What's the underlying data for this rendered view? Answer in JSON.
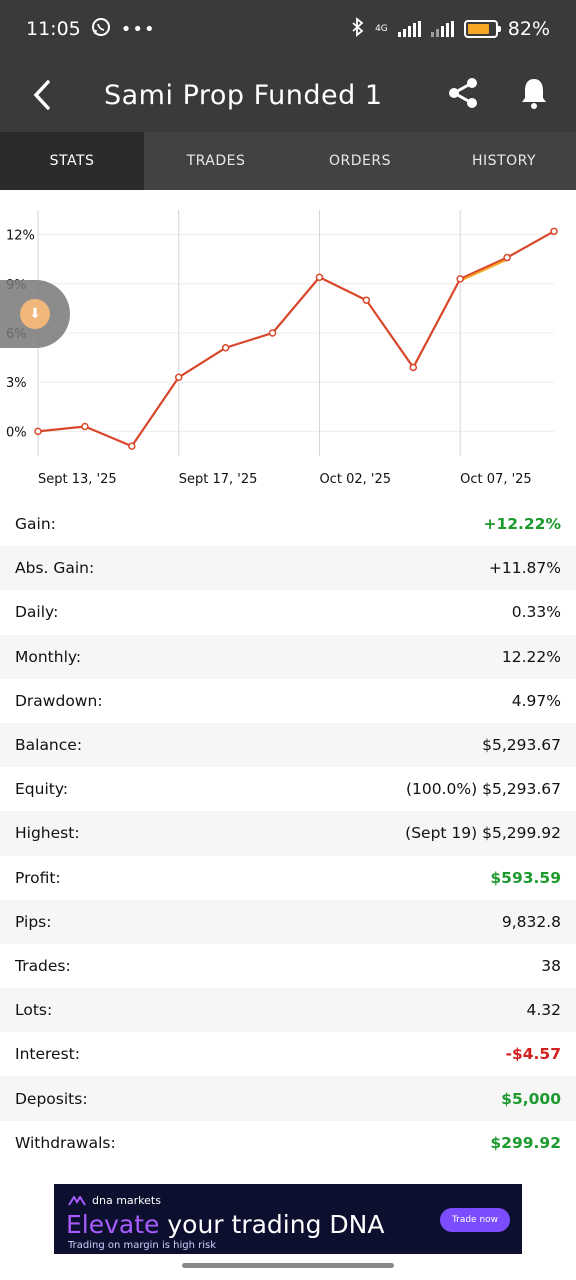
{
  "status_bar": {
    "time": "11:05",
    "network": "4G",
    "battery": "82%",
    "battery_level": 0.82
  },
  "app_bar": {
    "title": "Sami Prop Funded 1",
    "back_icon": "chevron-left-icon",
    "share_icon": "share-icon",
    "bell_icon": "bell-icon"
  },
  "tabs": [
    {
      "label": "STATS",
      "active": true
    },
    {
      "label": "TRADES",
      "active": false
    },
    {
      "label": "ORDERS",
      "active": false
    },
    {
      "label": "HISTORY",
      "active": false
    }
  ],
  "chart_data": {
    "type": "line",
    "title": "",
    "xlabel": "",
    "ylabel": "",
    "y_ticks": [
      "12%",
      "9%",
      "6%",
      "3%",
      "0%"
    ],
    "ylim": [
      -1.5,
      13.5
    ],
    "x_tick_labels": [
      "Sept 13, '25",
      "Sept 17, '25",
      "Oct 02, '25",
      "Oct 07, '25"
    ],
    "x_tick_index": [
      0,
      3,
      6,
      9
    ],
    "grid": true,
    "line_color": "#d9472b",
    "highlight_color": "#f5a623",
    "series": [
      {
        "name": "",
        "values": [
          0,
          0.3,
          -0.9,
          3.3,
          5.1,
          6.0,
          9.4,
          8.0,
          3.9,
          9.3,
          10.6,
          12.2
        ]
      }
    ]
  },
  "stats": [
    {
      "label": "Gain:",
      "value": "+12.22%",
      "tone": "green"
    },
    {
      "label": "Abs. Gain:",
      "value": "+11.87%",
      "tone": ""
    },
    {
      "label": "Daily:",
      "value": "0.33%",
      "tone": ""
    },
    {
      "label": "Monthly:",
      "value": "12.22%",
      "tone": ""
    },
    {
      "label": "Drawdown:",
      "value": "4.97%",
      "tone": ""
    },
    {
      "label": "Balance:",
      "value": "$5,293.67",
      "tone": ""
    },
    {
      "label": "Equity:",
      "value": "(100.0%) $5,293.67",
      "tone": ""
    },
    {
      "label": "Highest:",
      "value": "(Sept 19) $5,299.92",
      "tone": ""
    },
    {
      "label": "Profit:",
      "value": "$593.59",
      "tone": "green"
    },
    {
      "label": "Pips:",
      "value": "9,832.8",
      "tone": ""
    },
    {
      "label": "Trades:",
      "value": "38",
      "tone": ""
    },
    {
      "label": "Lots:",
      "value": "4.32",
      "tone": ""
    },
    {
      "label": "Interest:",
      "value": "-$4.57",
      "tone": "red"
    },
    {
      "label": "Deposits:",
      "value": "$5,000",
      "tone": "green"
    },
    {
      "label": "Withdrawals:",
      "value": "$299.92",
      "tone": "green"
    }
  ],
  "ad": {
    "brand": "dna markets",
    "headline_accent": "Elevate",
    "headline_rest": " your trading DNA",
    "subtext": "Trading on margin is high risk",
    "cta": "Trade now"
  }
}
